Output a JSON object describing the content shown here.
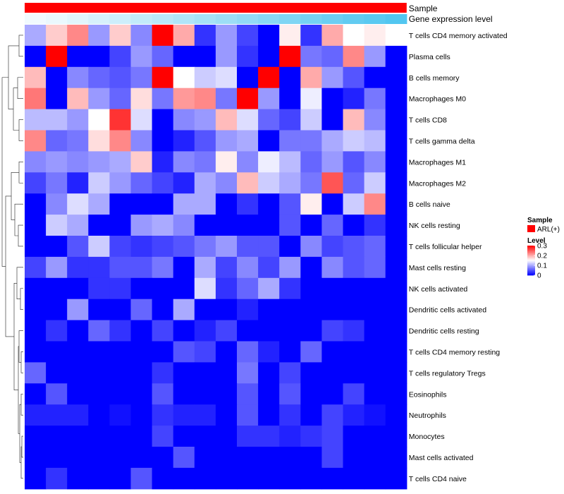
{
  "chart_data": {
    "type": "heatmap",
    "title": "",
    "annotation_tracks": [
      {
        "name": "Sample",
        "color": "#ff0000"
      },
      {
        "name": "Gene expression level",
        "gradient": [
          "#f4fbfe",
          "#52c6f0"
        ]
      }
    ],
    "columns": 18,
    "rows": [
      "T cells CD4 memory activated",
      "Plasma cells",
      "B cells memory",
      "Macrophages M0",
      "T cells CD8",
      "T cells gamma delta",
      "Macrophages M1",
      "Macrophages M2",
      "B cells naive",
      "NK cells resting",
      "T cells follicular helper",
      "Mast cells resting",
      "NK cells activated",
      "Dendritic cells activated",
      "Dendritic cells resting",
      "T cells CD4 memory resting",
      "T cells regulatory  Tregs",
      "Eosinophils",
      "Neutrophils",
      "Monocytes",
      "Mast cells activated",
      "T cells CD4 naive"
    ],
    "values": [
      [
        0.1,
        0.18,
        0.22,
        0.09,
        0.18,
        0.08,
        0.3,
        0.2,
        0.03,
        0.09,
        0.04,
        0.0,
        0.16,
        0.03,
        0.2,
        0.15,
        0.16,
        0.15
      ],
      [
        0.0,
        0.3,
        0.0,
        0.0,
        0.04,
        0.09,
        0.06,
        0.0,
        0.0,
        0.09,
        0.03,
        0.0,
        0.3,
        0.07,
        0.06,
        0.22,
        0.09,
        0.0
      ],
      [
        0.19,
        0.0,
        0.08,
        0.06,
        0.05,
        0.07,
        0.3,
        0.15,
        0.12,
        0.13,
        0.0,
        0.3,
        0.0,
        0.2,
        0.09,
        0.05,
        0.0,
        0.0
      ],
      [
        0.23,
        0.0,
        0.19,
        0.09,
        0.06,
        0.17,
        0.07,
        0.21,
        0.22,
        0.07,
        0.3,
        0.09,
        0.0,
        0.14,
        0.0,
        0.02,
        0.07,
        0.0
      ],
      [
        0.11,
        0.11,
        0.09,
        0.15,
        0.27,
        0.13,
        0.0,
        0.08,
        0.09,
        0.19,
        0.13,
        0.06,
        0.04,
        0.12,
        0.0,
        0.19,
        0.08,
        0.0
      ],
      [
        0.22,
        0.06,
        0.07,
        0.17,
        0.22,
        0.08,
        0.0,
        0.02,
        0.05,
        0.09,
        0.1,
        0.0,
        0.07,
        0.07,
        0.1,
        0.12,
        0.11,
        0.0
      ],
      [
        0.08,
        0.09,
        0.08,
        0.09,
        0.1,
        0.18,
        0.02,
        0.08,
        0.07,
        0.16,
        0.08,
        0.14,
        0.11,
        0.06,
        0.09,
        0.05,
        0.08,
        0.0
      ],
      [
        0.04,
        0.07,
        0.02,
        0.12,
        0.09,
        0.06,
        0.04,
        0.02,
        0.1,
        0.08,
        0.19,
        0.12,
        0.1,
        0.07,
        0.25,
        0.06,
        0.12,
        0.0
      ],
      [
        0.0,
        0.08,
        0.13,
        0.1,
        0.0,
        0.0,
        0.0,
        0.1,
        0.1,
        0.0,
        0.03,
        0.0,
        0.05,
        0.16,
        0.0,
        0.12,
        0.22,
        0.0
      ],
      [
        0.0,
        0.12,
        0.1,
        0.0,
        0.0,
        0.09,
        0.1,
        0.08,
        0.0,
        0.0,
        0.0,
        0.0,
        0.05,
        0.0,
        0.06,
        0.0,
        0.03,
        0.0
      ],
      [
        0.0,
        0.0,
        0.05,
        0.12,
        0.04,
        0.03,
        0.04,
        0.05,
        0.07,
        0.09,
        0.05,
        0.05,
        0.0,
        0.08,
        0.04,
        0.05,
        0.06,
        0.0
      ],
      [
        0.04,
        0.09,
        0.03,
        0.03,
        0.05,
        0.05,
        0.07,
        0.0,
        0.1,
        0.04,
        0.08,
        0.04,
        0.09,
        0.0,
        0.08,
        0.05,
        0.06,
        0.0
      ],
      [
        0.0,
        0.0,
        0.0,
        0.03,
        0.03,
        0.0,
        0.0,
        0.0,
        0.13,
        0.03,
        0.06,
        0.1,
        0.03,
        0.0,
        0.0,
        0.0,
        0.0,
        0.0
      ],
      [
        0.0,
        0.0,
        0.09,
        0.0,
        0.0,
        0.06,
        0.0,
        0.1,
        0.0,
        0.0,
        0.02,
        0.0,
        0.0,
        0.0,
        0.0,
        0.0,
        0.0,
        0.0
      ],
      [
        0.0,
        0.03,
        0.0,
        0.06,
        0.03,
        0.0,
        0.04,
        0.0,
        0.02,
        0.04,
        0.0,
        0.0,
        0.0,
        0.0,
        0.04,
        0.03,
        0.0,
        0.0
      ],
      [
        0.0,
        0.0,
        0.0,
        0.0,
        0.0,
        0.0,
        0.0,
        0.05,
        0.04,
        0.0,
        0.06,
        0.02,
        0.0,
        0.06,
        0.0,
        0.0,
        0.0,
        0.0
      ],
      [
        0.06,
        0.0,
        0.0,
        0.0,
        0.0,
        0.0,
        0.03,
        0.0,
        0.0,
        0.0,
        0.07,
        0.0,
        0.04,
        0.0,
        0.0,
        0.0,
        0.0,
        0.0
      ],
      [
        0.0,
        0.05,
        0.0,
        0.0,
        0.0,
        0.0,
        0.05,
        0.0,
        0.0,
        0.0,
        0.05,
        0.0,
        0.05,
        0.0,
        0.0,
        0.04,
        0.0,
        0.0
      ],
      [
        0.02,
        0.02,
        0.02,
        0.0,
        0.01,
        0.0,
        0.03,
        0.02,
        0.02,
        0.0,
        0.05,
        0.0,
        0.03,
        0.0,
        0.04,
        0.02,
        0.01,
        0.0
      ],
      [
        0.0,
        0.0,
        0.0,
        0.0,
        0.0,
        0.0,
        0.04,
        0.0,
        0.0,
        0.0,
        0.03,
        0.03,
        0.02,
        0.03,
        0.04,
        0.0,
        0.0,
        0.0
      ],
      [
        0.0,
        0.0,
        0.0,
        0.0,
        0.0,
        0.0,
        0.0,
        0.05,
        0.0,
        0.0,
        0.0,
        0.0,
        0.0,
        0.0,
        0.04,
        0.0,
        0.0,
        0.0
      ],
      [
        0.0,
        0.03,
        0.0,
        0.0,
        0.0,
        0.05,
        0.0,
        0.0,
        0.0,
        0.0,
        0.0,
        0.0,
        0.0,
        0.0,
        0.0,
        0.0,
        0.0,
        0.0
      ]
    ],
    "gene_expression_level": [
      0.02,
      0.06,
      0.12,
      0.18,
      0.24,
      0.3,
      0.36,
      0.42,
      0.48,
      0.54,
      0.6,
      0.66,
      0.72,
      0.78,
      0.84,
      0.9,
      0.95,
      1.0
    ],
    "color_scale": {
      "low": "#0000ff",
      "mid": "#ffffff",
      "high": "#ff0000",
      "min": 0,
      "max": 0.3
    },
    "legend": {
      "sample_title": "Sample",
      "sample_entry": "ARL(+)",
      "sample_color": "#ff0000",
      "level_title": "Level",
      "ticks": [
        "0.3",
        "0.2",
        "0.1",
        "0"
      ],
      "tick_values": [
        0.3,
        0.2,
        0.1,
        0
      ],
      "position": "right"
    },
    "dendrogram": "row clustering tree on left"
  }
}
